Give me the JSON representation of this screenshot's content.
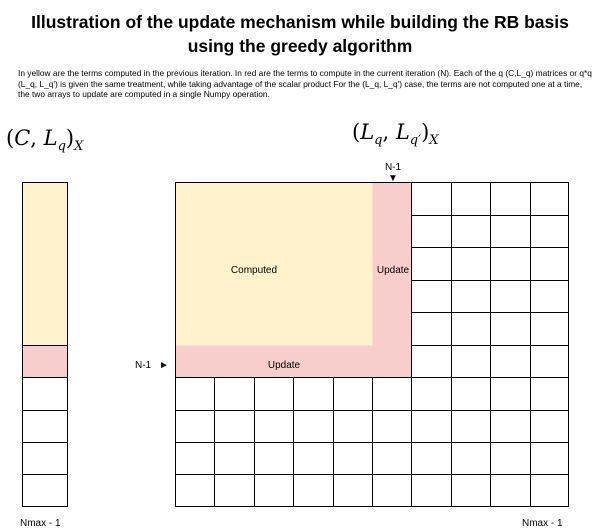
{
  "title_line1": "Illustration of the update mechanism while building the RB basis",
  "title_line2": "using the greedy algorithm",
  "description": "In yellow are the terms computed in the previous iteration. In red are  the terms to compute in the current iteration (N). Each of the q (C,L_q) matrices or q*q (L_q, L_q') is given the same treatment, while taking advantage of the scalar product For the (L_q, L_q') case, the terms are not computed one at a time, the two arrays to update are computed in a single Numpy operation.",
  "left_label": {
    "open": "(",
    "c": "C",
    "comma": ", ",
    "l": "L",
    "sub_q": "q",
    "close": ")",
    "sub_x": "X"
  },
  "right_label": {
    "open": "(",
    "l1": "L",
    "sub_q": "q",
    "comma": ", ",
    "l2": "L",
    "sub_qp": "q′",
    "close": ")",
    "sub_x": "X"
  },
  "labels": {
    "computed": "Computed",
    "update_bottom": "Update",
    "update_right": "Update",
    "n1_top": "N-1",
    "n1_left": "N-1",
    "nmax_left": "Nmax - 1",
    "nmax_right": "Nmax - 1",
    "arrow_down": "▼",
    "arrow_right": "►"
  },
  "colors": {
    "computed": "#fff2cc",
    "update": "#f8cecc",
    "grid": "#000000"
  }
}
